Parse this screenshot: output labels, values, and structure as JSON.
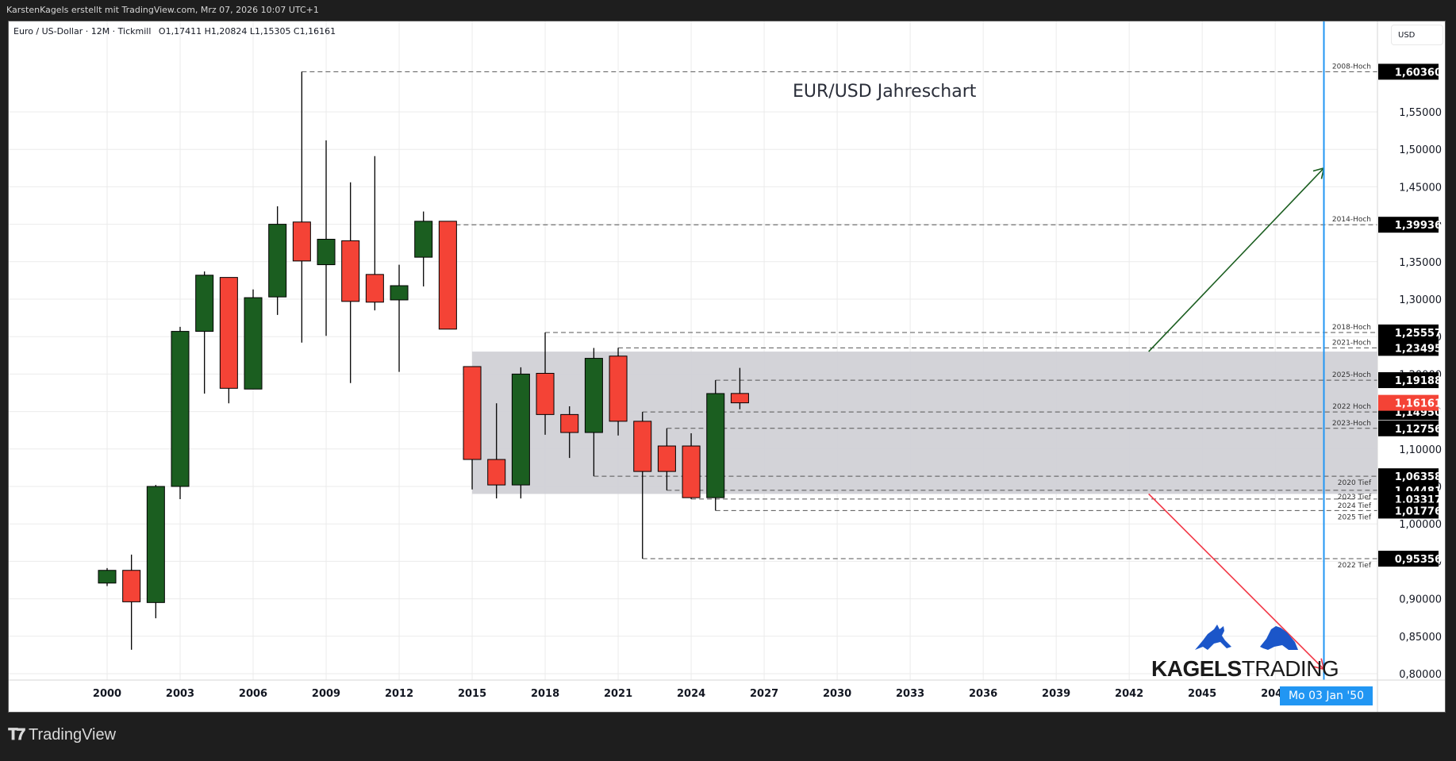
{
  "header": {
    "attribution": "KarstenKagels erstellt mit TradingView.com, Mrz 07, 2026 10:07 UTC+1"
  },
  "legend": {
    "symbol": "Euro / US-Dollar · 12M · Tickmill",
    "ohlc": "O1,17411  H1,20824  L1,15305  C1,16161"
  },
  "price_axis": {
    "currency": "USD"
  },
  "crosshair": {
    "date_label": "Mo 03 Jan '50"
  },
  "branding": {
    "footer_logo": "TradingView",
    "watermark_bold": "KAGELS",
    "watermark_light": "TRADING"
  },
  "colors": {
    "up": "#1b5e20",
    "down": "#f44336",
    "grid": "#ebebeb",
    "zone": "#d1d1d6",
    "crosshair": "#2196f3",
    "arrow_up": "#1b5e20",
    "arrow_down": "#f23645",
    "last_price_bg": "#f44336",
    "level_bg": "#000000"
  },
  "chart_data": {
    "type": "candlestick",
    "title": "EUR/USD Jahreschart",
    "symbol": "Euro / US-Dollar",
    "interval": "12M",
    "broker": "Tickmill",
    "xlabel": "",
    "ylabel": "USD",
    "ylim": [
      0.78,
      1.62
    ],
    "grid": true,
    "x_ticks": [
      "2000",
      "2003",
      "2006",
      "2009",
      "2012",
      "2015",
      "2018",
      "2021",
      "2024",
      "2027",
      "2030",
      "2033",
      "2036",
      "2039",
      "2042",
      "2045",
      "2048"
    ],
    "y_ticks": [
      "0,80000",
      "0,85000",
      "0,90000",
      "0,95000",
      "1,00000",
      "1,05000",
      "1,10000",
      "1,15000",
      "1,20000",
      "1,25000",
      "1,30000",
      "1,35000",
      "1,40000",
      "1,45000",
      "1,50000",
      "1,55000"
    ],
    "candles": [
      {
        "year": 2000,
        "o": 0.921,
        "h": 0.941,
        "l": 0.917,
        "c": 0.938
      },
      {
        "year": 2001,
        "o": 0.938,
        "h": 0.959,
        "l": 0.832,
        "c": 0.896
      },
      {
        "year": 2002,
        "o": 0.895,
        "h": 1.052,
        "l": 0.874,
        "c": 1.05
      },
      {
        "year": 2003,
        "o": 1.05,
        "h": 1.263,
        "l": 1.033,
        "c": 1.257
      },
      {
        "year": 2004,
        "o": 1.257,
        "h": 1.337,
        "l": 1.174,
        "c": 1.332
      },
      {
        "year": 2005,
        "o": 1.329,
        "h": 1.329,
        "l": 1.161,
        "c": 1.181
      },
      {
        "year": 2006,
        "o": 1.18,
        "h": 1.313,
        "l": 1.18,
        "c": 1.302
      },
      {
        "year": 2007,
        "o": 1.303,
        "h": 1.424,
        "l": 1.279,
        "c": 1.4
      },
      {
        "year": 2008,
        "o": 1.403,
        "h": 1.6036,
        "l": 1.242,
        "c": 1.351
      },
      {
        "year": 2009,
        "o": 1.346,
        "h": 1.512,
        "l": 1.251,
        "c": 1.38
      },
      {
        "year": 2010,
        "o": 1.378,
        "h": 1.456,
        "l": 1.188,
        "c": 1.297
      },
      {
        "year": 2011,
        "o": 1.333,
        "h": 1.491,
        "l": 1.285,
        "c": 1.296
      },
      {
        "year": 2012,
        "o": 1.299,
        "h": 1.346,
        "l": 1.203,
        "c": 1.318
      },
      {
        "year": 2013,
        "o": 1.356,
        "h": 1.417,
        "l": 1.317,
        "c": 1.404
      },
      {
        "year": 2014,
        "o": 1.404,
        "h": 1.39936,
        "l": 1.26,
        "c": 1.26
      },
      {
        "year": 2015,
        "o": 1.21,
        "h": 1.21,
        "l": 1.046,
        "c": 1.086
      },
      {
        "year": 2016,
        "o": 1.086,
        "h": 1.161,
        "l": 1.034,
        "c": 1.052
      },
      {
        "year": 2017,
        "o": 1.052,
        "h": 1.209,
        "l": 1.034,
        "c": 1.2
      },
      {
        "year": 2018,
        "o": 1.201,
        "h": 1.25557,
        "l": 1.119,
        "c": 1.146
      },
      {
        "year": 2019,
        "o": 1.146,
        "h": 1.157,
        "l": 1.088,
        "c": 1.122
      },
      {
        "year": 2020,
        "o": 1.122,
        "h": 1.2349,
        "l": 1.06358,
        "c": 1.221
      },
      {
        "year": 2021,
        "o": 1.224,
        "h": 1.23495,
        "l": 1.118,
        "c": 1.137
      },
      {
        "year": 2022,
        "o": 1.137,
        "h": 1.1495,
        "l": 0.95356,
        "c": 1.07
      },
      {
        "year": 2023,
        "o": 1.104,
        "h": 1.12756,
        "l": 1.04481,
        "c": 1.07
      },
      {
        "year": 2024,
        "o": 1.104,
        "h": 1.121,
        "l": 1.03317,
        "c": 1.035
      },
      {
        "year": 2025,
        "o": 1.035,
        "h": 1.19188,
        "l": 1.01776,
        "c": 1.174
      },
      {
        "year": 2026,
        "o": 1.17411,
        "h": 1.20824,
        "l": 1.15305,
        "c": 1.16161
      }
    ],
    "zone": {
      "from_year": 2015,
      "to_year": 2050,
      "top": 1.23,
      "bottom": 1.04
    },
    "levels": [
      {
        "label": "2008-Hoch",
        "price": 1.6036,
        "price_label": "1,60360",
        "from_year": 2008,
        "label_pos": "above"
      },
      {
        "label": "2014-Hoch",
        "price": 1.39936,
        "price_label": "1,39936",
        "from_year": 2014,
        "label_pos": "above"
      },
      {
        "label": "2018-Hoch",
        "price": 1.25557,
        "price_label": "1,25557",
        "from_year": 2018,
        "label_pos": "above"
      },
      {
        "label": "2021-Hoch",
        "price": 1.23495,
        "price_label": "1,23495",
        "from_year": 2021,
        "label_pos": "above"
      },
      {
        "label": "2025-Hoch",
        "price": 1.19188,
        "price_label": "1,19188",
        "from_year": 2025,
        "label_pos": "above"
      },
      {
        "label": "2022 Hoch",
        "price": 1.1495,
        "price_label": "1,14950",
        "from_year": 2022,
        "label_pos": "above"
      },
      {
        "label": "2023-Hoch",
        "price": 1.12756,
        "price_label": "1,12756",
        "from_year": 2023,
        "label_pos": "above"
      },
      {
        "label": "2020 Tief",
        "price": 1.06358,
        "price_label": "1,06358",
        "from_year": 2020,
        "label_pos": "below"
      },
      {
        "label": "2023 Tief",
        "price": 1.04481,
        "price_label": "1,04481",
        "from_year": 2023,
        "label_pos": "below"
      },
      {
        "label": "2024 Tief",
        "price": 1.03317,
        "price_label": "1,03317",
        "from_year": 2024,
        "label_pos": "below"
      },
      {
        "label": "2025 Tief",
        "price": 1.01776,
        "price_label": "1,01776",
        "from_year": 2025,
        "label_pos": "below"
      },
      {
        "label": "2022 Tief",
        "price": 0.95356,
        "price_label": "0,95356",
        "from_year": 2022,
        "label_pos": "below"
      }
    ],
    "last_price": {
      "price": 1.16161,
      "label": "1,16161"
    },
    "arrows": [
      {
        "name": "bullish-target-arrow",
        "from": {
          "year": 2042.8,
          "price": 1.23
        },
        "to": {
          "year": 2050,
          "price": 1.475
        },
        "color": "up"
      },
      {
        "name": "bearish-target-arrow",
        "from": {
          "year": 2042.8,
          "price": 1.04
        },
        "to": {
          "year": 2050,
          "price": 0.806
        },
        "color": "down"
      }
    ],
    "crosshair_year": 2050,
    "annotations": [
      "EUR/USD Jahreschart",
      "KAGELS TRADING"
    ]
  }
}
